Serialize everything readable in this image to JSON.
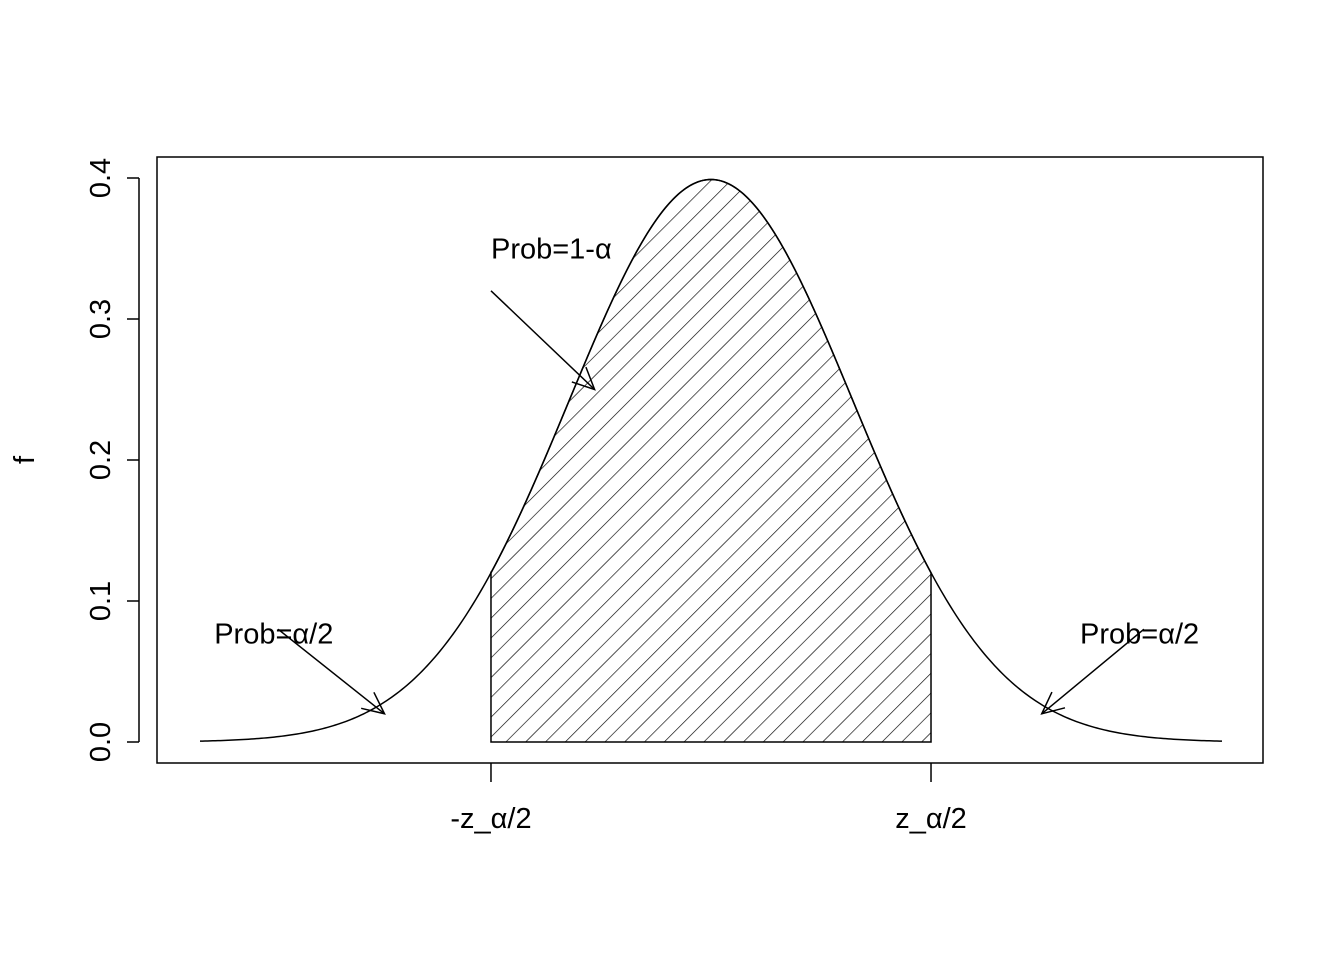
{
  "chart_data": {
    "type": "area",
    "distribution": "standard normal density",
    "ylabel": "f",
    "xlim": [
      -3.6,
      3.6
    ],
    "ylim": [
      0,
      0.4
    ],
    "y_ticks": [
      "0.0",
      "0.1",
      "0.2",
      "0.3",
      "0.4"
    ],
    "y_tick_values": [
      0,
      0.1,
      0.2,
      0.3,
      0.4
    ],
    "x_ticks": [
      "-z_α/2",
      "z_α/2"
    ],
    "x_tick_values": [
      -1.55,
      1.55
    ],
    "shaded_region": {
      "from": -1.55,
      "to": 1.55,
      "fill": "diagonal hatch"
    },
    "annotations": [
      {
        "text": "Prob=1-α",
        "label_at": [
          -1.55,
          0.35
        ],
        "arrow_from": [
          -1.55,
          0.32
        ],
        "arrow_to": [
          -0.82,
          0.25
        ]
      },
      {
        "text": "Prob=α/2",
        "label_at": [
          -3.5,
          0.077
        ],
        "arrow_from": [
          -3.05,
          0.08
        ],
        "arrow_to": [
          -2.3,
          0.02
        ]
      },
      {
        "text": "Prob=α/2",
        "label_at": [
          2.6,
          0.077
        ],
        "arrow_from": [
          3.05,
          0.08
        ],
        "arrow_to": [
          2.33,
          0.02
        ]
      }
    ],
    "grid": false,
    "legend": "none"
  }
}
